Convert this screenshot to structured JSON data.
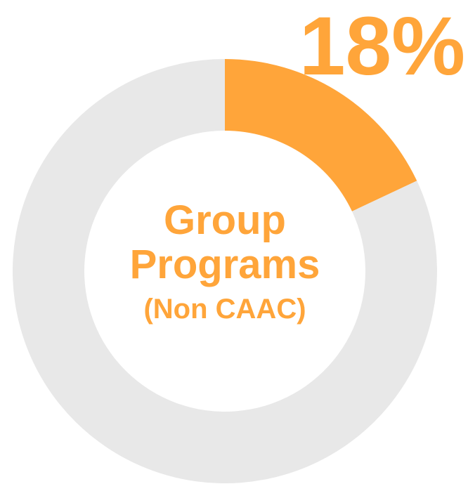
{
  "chart_data": {
    "type": "donut",
    "title": "Group Programs",
    "subtitle": "(Non CAAC)",
    "values": [
      18,
      82
    ],
    "value_labels": [
      "18%",
      null
    ],
    "colors": [
      "#ffa53a",
      "#e8e8e8"
    ]
  }
}
